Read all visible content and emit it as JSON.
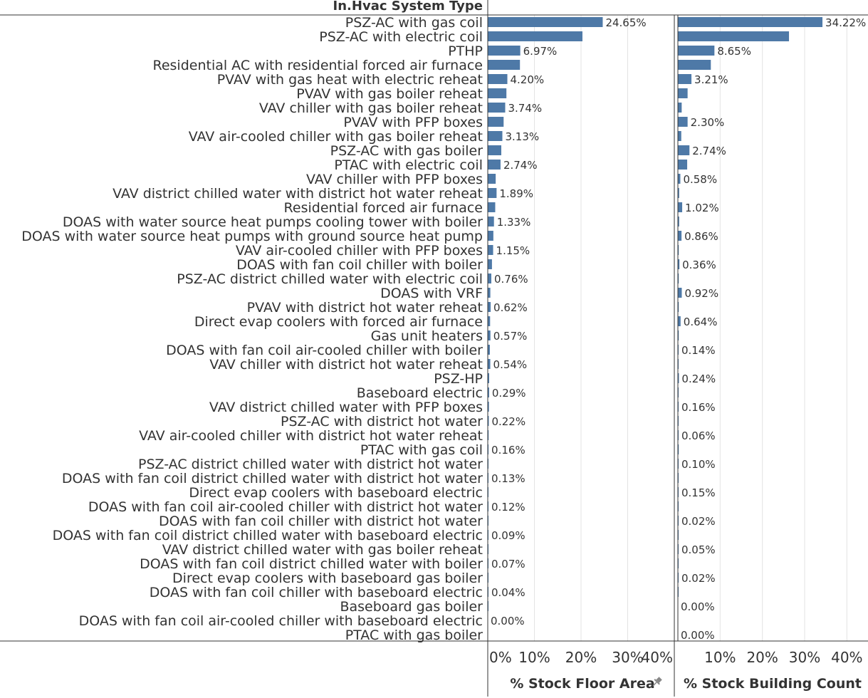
{
  "chart_data": {
    "type": "bar",
    "orientation": "horizontal",
    "row_header": "In.Hvac System Type",
    "bar_color": "#4e79a7",
    "grid": true,
    "categories": [
      "PSZ-AC with gas coil",
      "PSZ-AC with electric coil",
      "PTHP",
      "Residential AC with residential forced air furnace",
      "PVAV with gas heat with electric reheat",
      "PVAV with gas boiler reheat",
      "VAV chiller with gas boiler reheat",
      "PVAV with PFP boxes",
      "VAV air-cooled chiller with gas boiler reheat",
      "PSZ-AC with gas boiler",
      "PTAC with electric coil",
      "VAV chiller with PFP boxes",
      "VAV district chilled water with district hot water reheat",
      "Residential forced air furnace",
      "DOAS with water source heat pumps cooling tower with boiler",
      "DOAS with water source heat pumps with ground source heat pump",
      "VAV air-cooled chiller with PFP boxes",
      "DOAS with fan coil chiller with boiler",
      "PSZ-AC district chilled water with electric coil",
      "DOAS with VRF",
      "PVAV with district hot water reheat",
      "Direct evap coolers with forced air furnace",
      "Gas unit heaters",
      "DOAS with fan coil air-cooled chiller with boiler",
      "VAV chiller with district hot water reheat",
      "PSZ-HP",
      "Baseboard electric",
      "VAV district chilled water with PFP boxes",
      "PSZ-AC with district hot water",
      "VAV air-cooled chiller with district hot water reheat",
      "PTAC with gas coil",
      "PSZ-AC district chilled water with district hot water",
      "DOAS with fan coil district chilled water with district hot water",
      "Direct evap coolers with baseboard electric",
      "DOAS with fan coil air-cooled chiller with district hot water",
      "DOAS with fan coil chiller with district hot water",
      "DOAS with fan coil district chilled water with baseboard electric",
      "VAV district chilled water with gas boiler reheat",
      "DOAS with fan coil district chilled water with boiler",
      "Direct evap coolers with baseboard gas boiler",
      "DOAS with fan coil chiller with baseboard electric",
      "Baseboard gas boiler",
      "DOAS with fan coil air-cooled chiller with baseboard electric",
      "PTAC with gas boiler"
    ],
    "series": [
      {
        "name": "% Stock Floor Area",
        "xlim": [
          0,
          40
        ],
        "ticks": [
          0,
          10,
          20,
          30,
          40
        ],
        "tick_labels": [
          "0%",
          "10%",
          "20%",
          "30%",
          "40%"
        ],
        "values": [
          24.65,
          20.3,
          6.97,
          6.9,
          4.2,
          4.0,
          3.74,
          3.4,
          3.13,
          2.9,
          2.74,
          1.7,
          1.89,
          1.6,
          1.33,
          1.2,
          1.15,
          0.9,
          0.76,
          0.55,
          0.62,
          0.5,
          0.57,
          0.45,
          0.54,
          0.3,
          0.29,
          0.25,
          0.22,
          0.18,
          0.16,
          0.14,
          0.13,
          0.13,
          0.12,
          0.1,
          0.09,
          0.08,
          0.07,
          0.05,
          0.04,
          0.02,
          0.0,
          0.0
        ],
        "labels": [
          "24.65%",
          "",
          "6.97%",
          "",
          "4.20%",
          "",
          "3.74%",
          "",
          "3.13%",
          "",
          "2.74%",
          "",
          "1.89%",
          "",
          "1.33%",
          "",
          "1.15%",
          "",
          "0.76%",
          "",
          "0.62%",
          "",
          "0.57%",
          "",
          "0.54%",
          "",
          "0.29%",
          "",
          "0.22%",
          "",
          "0.16%",
          "",
          "0.13%",
          "",
          "0.12%",
          "",
          "0.09%",
          "",
          "0.07%",
          "",
          "0.04%",
          "",
          "0.00%",
          ""
        ],
        "pinned": true
      },
      {
        "name": "% Stock Building Count",
        "xlim": [
          0,
          45
        ],
        "ticks": [
          10,
          20,
          30,
          40
        ],
        "tick_labels": [
          "10%",
          "20%",
          "30%",
          "40%"
        ],
        "values": [
          34.22,
          26.3,
          8.65,
          7.8,
          3.21,
          2.3,
          0.9,
          2.3,
          0.8,
          2.74,
          2.2,
          0.58,
          0.3,
          1.02,
          0.3,
          0.86,
          0.2,
          0.36,
          0.2,
          0.92,
          0.2,
          0.64,
          0.2,
          0.14,
          0.1,
          0.24,
          0.1,
          0.16,
          0.1,
          0.06,
          0.2,
          0.1,
          0.05,
          0.15,
          0.05,
          0.02,
          0.02,
          0.05,
          0.02,
          0.02,
          0.01,
          0.0,
          0.0,
          0.0
        ],
        "labels": [
          "34.22%",
          "",
          "8.65%",
          "",
          "3.21%",
          "",
          "",
          "2.30%",
          "",
          "2.74%",
          "",
          "0.58%",
          "",
          "1.02%",
          "",
          "0.86%",
          "",
          "0.36%",
          "",
          "0.92%",
          "",
          "0.64%",
          "",
          "0.14%",
          "",
          "0.24%",
          "",
          "0.16%",
          "",
          "0.06%",
          "",
          "0.10%",
          "",
          "0.15%",
          "",
          "0.02%",
          "",
          "0.05%",
          "",
          "0.02%",
          "",
          "0.00%",
          "",
          "0.00%"
        ],
        "pinned": false
      }
    ]
  }
}
